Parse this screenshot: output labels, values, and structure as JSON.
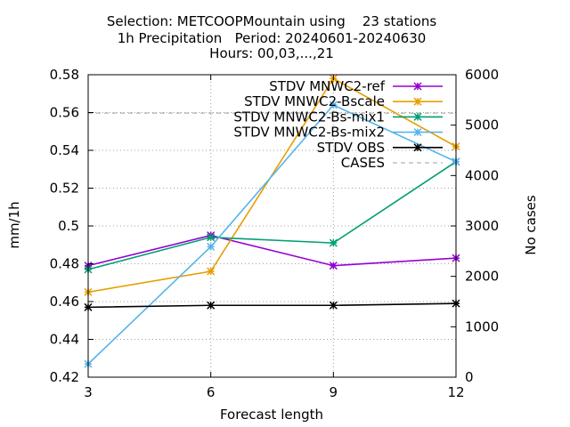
{
  "title_lines": [
    "Selection: METCOOPMountain using    23 stations",
    "1h Precipitation   Period: 20240601-20240630",
    "Hours: 00,03,...,21"
  ],
  "chart_data": {
    "type": "line",
    "title": "Selection: METCOOPMountain using    23 stations 1h Precipitation   Period: 20240601-20240630 Hours: 00,03,...,21",
    "xlabel": "Forecast length",
    "ylabel": "mm/1h",
    "y2label": "No cases",
    "x": [
      3,
      6,
      9,
      12
    ],
    "xlim": [
      3,
      12
    ],
    "ylim": [
      0.42,
      0.58
    ],
    "y2lim": [
      0,
      6000
    ],
    "xticks": [
      "3",
      "6",
      "9",
      "12"
    ],
    "yticks": [
      "0.42",
      "0.44",
      "0.46",
      "0.48",
      "0.5",
      "0.52",
      "0.54",
      "0.56",
      "0.58"
    ],
    "y2ticks": [
      "0",
      "1000",
      "2000",
      "3000",
      "4000",
      "5000",
      "6000"
    ],
    "grid": true,
    "legend_position": "top-right",
    "series": [
      {
        "name": "STDV MNWC2-ref",
        "color": "#9400d3",
        "marker": "star",
        "axis": "y",
        "values": [
          0.479,
          0.495,
          0.479,
          0.483
        ]
      },
      {
        "name": "STDV MNWC2-Bscale",
        "color": "#e69f00",
        "marker": "star",
        "axis": "y",
        "values": [
          0.465,
          0.476,
          0.578,
          0.542
        ]
      },
      {
        "name": "STDV MNWC2-Bs-mix1",
        "color": "#009e73",
        "marker": "star",
        "axis": "y",
        "values": [
          0.477,
          0.494,
          0.491,
          0.534
        ]
      },
      {
        "name": "STDV MNWC2-Bs-mix2",
        "color": "#56b4e9",
        "marker": "star",
        "axis": "y",
        "values": [
          0.427,
          0.489,
          0.564,
          0.534
        ]
      },
      {
        "name": "STDV OBS",
        "color": "#000000",
        "marker": "star",
        "axis": "y",
        "values": [
          0.457,
          0.458,
          0.458,
          0.459
        ]
      },
      {
        "name": "CASES",
        "color": "#a0a0a0",
        "marker": "none",
        "dash": true,
        "axis": "y2",
        "values": [
          5240,
          5240,
          5240,
          5240
        ]
      }
    ]
  }
}
